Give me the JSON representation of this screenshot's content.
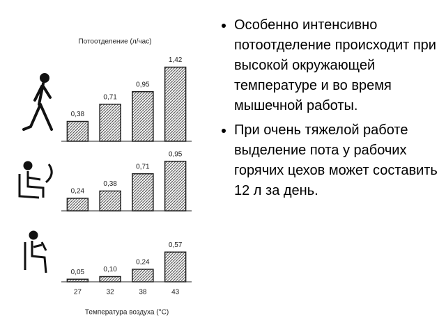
{
  "chart_data": {
    "type": "bar",
    "title": "Потоотделение (л/час)",
    "x_label": "Температура воздуха (°C)",
    "categories": [
      "27",
      "32",
      "38",
      "43"
    ],
    "color": "#9a9a9a",
    "series": [
      {
        "values": [
          0.38,
          0.71,
          0.95,
          1.42
        ],
        "value_labels": [
          "0,38",
          "0,71",
          "0,95",
          "1,42"
        ]
      },
      {
        "values": [
          0.24,
          0.38,
          0.71,
          0.95
        ],
        "value_labels": [
          "0,24",
          "0,38",
          "0,71",
          "0,95"
        ]
      },
      {
        "values": [
          0.05,
          0.1,
          0.24,
          0.57
        ],
        "value_labels": [
          "0,05",
          "0,10",
          "0,24",
          "0,57"
        ]
      }
    ]
  },
  "slide": {
    "bullets": [
      "Особенно интенсивно потоотделение происходит при высокой окружающей температуре и во время мышечной работы.",
      "При очень тяжелой работе выделение пота у рабочих горячих цехов может составить 12 л за день."
    ]
  }
}
